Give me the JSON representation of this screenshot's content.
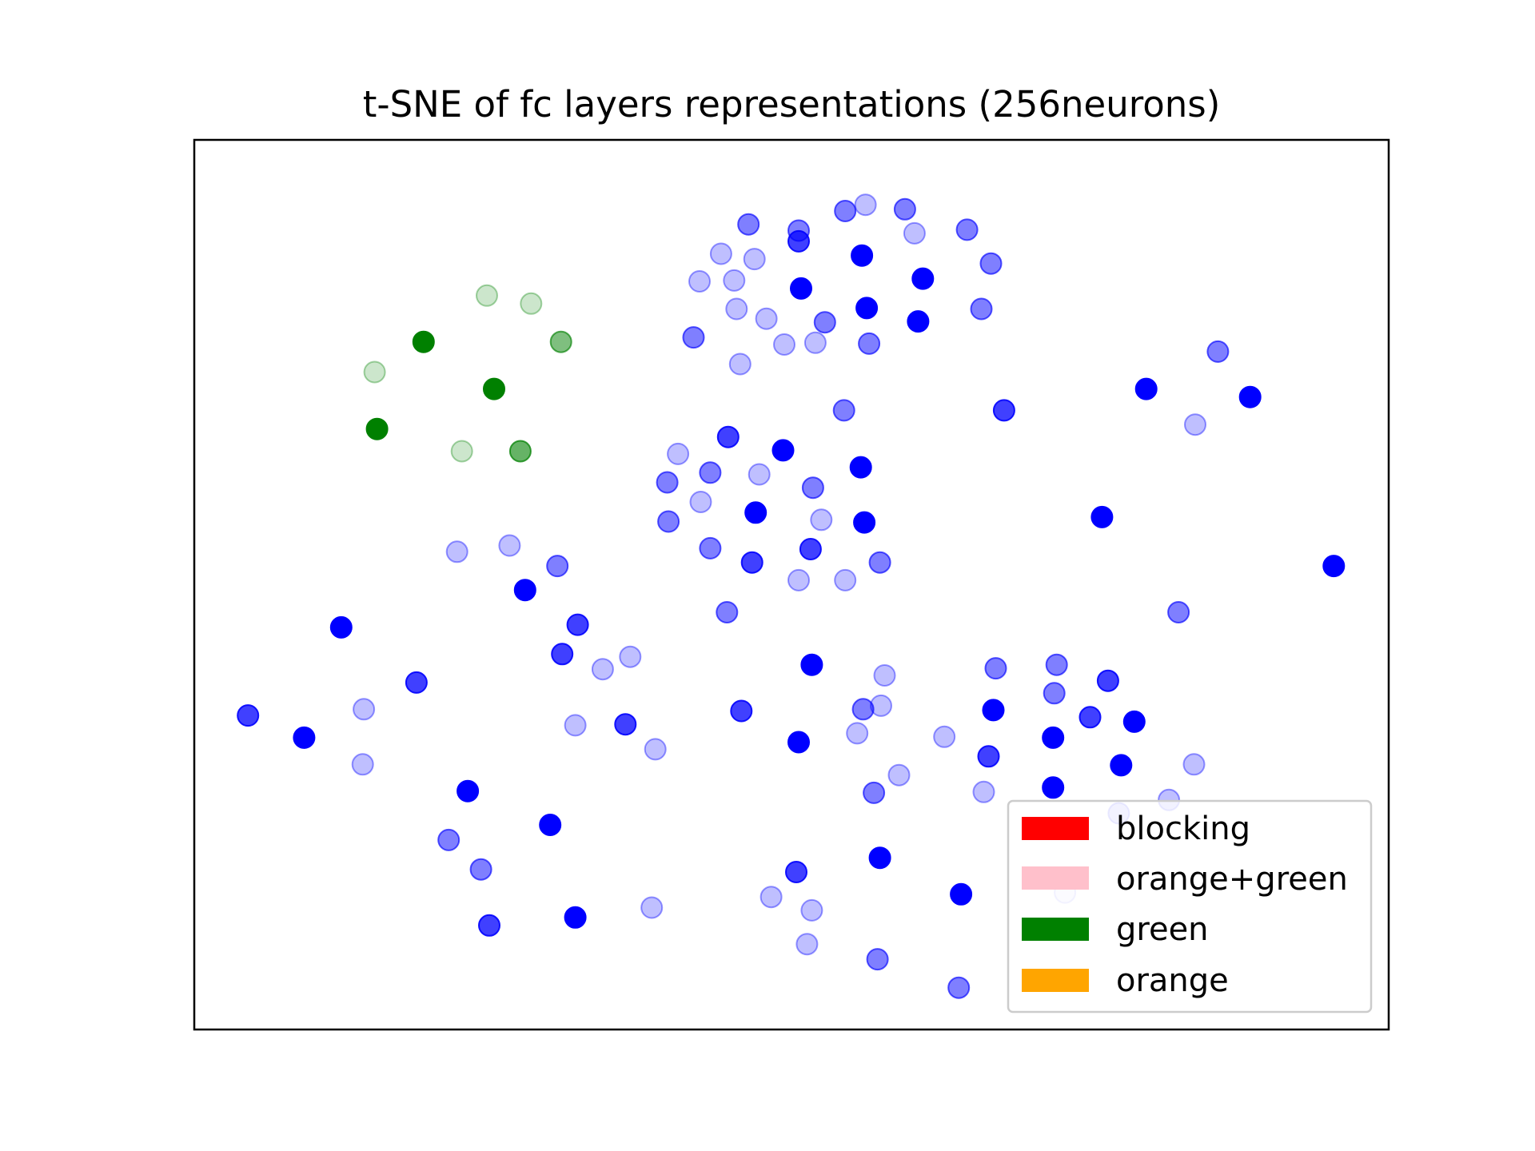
{
  "chart_data": {
    "type": "scatter",
    "title": "t-SNE of fc layers representations (256neurons)",
    "xlabel": "",
    "ylabel": "",
    "xlim": [
      0,
      100
    ],
    "ylim": [
      0,
      100
    ],
    "axes_ticks": false,
    "grid": false,
    "legend_position": "lower-right",
    "legend": [
      {
        "label": "blocking",
        "color": "#ff0000"
      },
      {
        "label": "orange+green",
        "color": "#ffc0cb"
      },
      {
        "label": "green",
        "color": "#008000"
      },
      {
        "label": "orange",
        "color": "#ffa500"
      }
    ],
    "series": [
      {
        "color": "#0000ff",
        "points": [
          {
            "x": 50.6,
            "y": 89.8,
            "a": 0.5
          },
          {
            "x": 56.2,
            "y": 92.7,
            "a": 0.25
          },
          {
            "x": 54.5,
            "y": 92.0,
            "a": 0.5
          },
          {
            "x": 59.5,
            "y": 92.2,
            "a": 0.5
          },
          {
            "x": 46.4,
            "y": 90.5,
            "a": 0.5
          },
          {
            "x": 50.6,
            "y": 88.6,
            "a": 0.75
          },
          {
            "x": 44.1,
            "y": 87.2,
            "a": 0.25
          },
          {
            "x": 46.9,
            "y": 86.6,
            "a": 0.25
          },
          {
            "x": 60.3,
            "y": 89.5,
            "a": 0.25
          },
          {
            "x": 64.7,
            "y": 89.9,
            "a": 0.5
          },
          {
            "x": 55.9,
            "y": 87.0,
            "a": 1.0
          },
          {
            "x": 42.3,
            "y": 84.1,
            "a": 0.25
          },
          {
            "x": 45.2,
            "y": 84.2,
            "a": 0.25
          },
          {
            "x": 50.8,
            "y": 83.3,
            "a": 1.0
          },
          {
            "x": 61.0,
            "y": 84.4,
            "a": 1.0
          },
          {
            "x": 66.7,
            "y": 86.1,
            "a": 0.5
          },
          {
            "x": 45.4,
            "y": 81.0,
            "a": 0.25
          },
          {
            "x": 47.9,
            "y": 79.9,
            "a": 0.25
          },
          {
            "x": 52.8,
            "y": 79.5,
            "a": 0.5
          },
          {
            "x": 56.3,
            "y": 81.1,
            "a": 1.0
          },
          {
            "x": 60.6,
            "y": 79.6,
            "a": 1.0
          },
          {
            "x": 65.9,
            "y": 81.0,
            "a": 0.5
          },
          {
            "x": 41.8,
            "y": 77.8,
            "a": 0.5
          },
          {
            "x": 49.4,
            "y": 77.0,
            "a": 0.25
          },
          {
            "x": 52.0,
            "y": 77.2,
            "a": 0.25
          },
          {
            "x": 56.5,
            "y": 77.1,
            "a": 0.5
          },
          {
            "x": 45.7,
            "y": 74.8,
            "a": 0.25
          },
          {
            "x": 85.7,
            "y": 76.2,
            "a": 0.5
          },
          {
            "x": 79.7,
            "y": 72.0,
            "a": 1.0
          },
          {
            "x": 88.4,
            "y": 71.1,
            "a": 1.0
          },
          {
            "x": 54.4,
            "y": 69.6,
            "a": 0.5
          },
          {
            "x": 67.8,
            "y": 69.6,
            "a": 0.75
          },
          {
            "x": 83.8,
            "y": 68.0,
            "a": 0.25
          },
          {
            "x": 44.7,
            "y": 66.6,
            "a": 0.75
          },
          {
            "x": 49.3,
            "y": 65.1,
            "a": 1.0
          },
          {
            "x": 40.5,
            "y": 64.7,
            "a": 0.25
          },
          {
            "x": 55.8,
            "y": 63.2,
            "a": 1.0
          },
          {
            "x": 43.2,
            "y": 62.6,
            "a": 0.5
          },
          {
            "x": 47.3,
            "y": 62.4,
            "a": 0.25
          },
          {
            "x": 39.6,
            "y": 61.5,
            "a": 0.5
          },
          {
            "x": 51.8,
            "y": 60.9,
            "a": 0.5
          },
          {
            "x": 42.4,
            "y": 59.3,
            "a": 0.25
          },
          {
            "x": 47.0,
            "y": 58.1,
            "a": 1.0
          },
          {
            "x": 52.5,
            "y": 57.3,
            "a": 0.25
          },
          {
            "x": 39.7,
            "y": 57.1,
            "a": 0.5
          },
          {
            "x": 56.1,
            "y": 57.0,
            "a": 1.0
          },
          {
            "x": 76.0,
            "y": 57.6,
            "a": 1.0
          },
          {
            "x": 43.2,
            "y": 54.1,
            "a": 0.5
          },
          {
            "x": 51.6,
            "y": 54.0,
            "a": 0.75
          },
          {
            "x": 22.0,
            "y": 53.7,
            "a": 0.25
          },
          {
            "x": 26.4,
            "y": 54.4,
            "a": 0.25
          },
          {
            "x": 46.7,
            "y": 52.5,
            "a": 0.75
          },
          {
            "x": 57.4,
            "y": 52.5,
            "a": 0.5
          },
          {
            "x": 30.4,
            "y": 52.1,
            "a": 0.5
          },
          {
            "x": 95.4,
            "y": 52.1,
            "a": 1.0
          },
          {
            "x": 50.6,
            "y": 50.5,
            "a": 0.25
          },
          {
            "x": 54.5,
            "y": 50.5,
            "a": 0.25
          },
          {
            "x": 27.7,
            "y": 49.4,
            "a": 1.0
          },
          {
            "x": 12.3,
            "y": 45.2,
            "a": 1.0
          },
          {
            "x": 32.1,
            "y": 45.5,
            "a": 0.75
          },
          {
            "x": 44.6,
            "y": 46.9,
            "a": 0.5
          },
          {
            "x": 82.4,
            "y": 46.9,
            "a": 0.5
          },
          {
            "x": 30.8,
            "y": 42.2,
            "a": 0.75
          },
          {
            "x": 36.5,
            "y": 41.9,
            "a": 0.25
          },
          {
            "x": 51.7,
            "y": 41.0,
            "a": 1.0
          },
          {
            "x": 67.1,
            "y": 40.6,
            "a": 0.5
          },
          {
            "x": 72.2,
            "y": 41.0,
            "a": 0.5
          },
          {
            "x": 34.2,
            "y": 40.5,
            "a": 0.25
          },
          {
            "x": 57.8,
            "y": 39.8,
            "a": 0.25
          },
          {
            "x": 18.6,
            "y": 39.0,
            "a": 0.75
          },
          {
            "x": 76.5,
            "y": 39.2,
            "a": 0.75
          },
          {
            "x": 72.0,
            "y": 37.8,
            "a": 0.5
          },
          {
            "x": 56.0,
            "y": 36.0,
            "a": 0.5
          },
          {
            "x": 57.5,
            "y": 36.4,
            "a": 0.25
          },
          {
            "x": 14.2,
            "y": 36.0,
            "a": 0.25
          },
          {
            "x": 45.8,
            "y": 35.8,
            "a": 0.75
          },
          {
            "x": 66.9,
            "y": 35.9,
            "a": 1.0
          },
          {
            "x": 75.0,
            "y": 35.1,
            "a": 0.75
          },
          {
            "x": 4.5,
            "y": 35.3,
            "a": 0.75
          },
          {
            "x": 31.9,
            "y": 34.2,
            "a": 0.25
          },
          {
            "x": 36.1,
            "y": 34.3,
            "a": 0.75
          },
          {
            "x": 55.5,
            "y": 33.3,
            "a": 0.25
          },
          {
            "x": 78.7,
            "y": 34.6,
            "a": 1.0
          },
          {
            "x": 9.2,
            "y": 32.8,
            "a": 1.0
          },
          {
            "x": 50.6,
            "y": 32.3,
            "a": 1.0
          },
          {
            "x": 62.8,
            "y": 32.9,
            "a": 0.25
          },
          {
            "x": 38.6,
            "y": 31.5,
            "a": 0.25
          },
          {
            "x": 71.9,
            "y": 32.8,
            "a": 1.0
          },
          {
            "x": 66.5,
            "y": 30.7,
            "a": 0.75
          },
          {
            "x": 77.6,
            "y": 29.7,
            "a": 1.0
          },
          {
            "x": 14.1,
            "y": 29.8,
            "a": 0.25
          },
          {
            "x": 59.0,
            "y": 28.6,
            "a": 0.25
          },
          {
            "x": 83.7,
            "y": 29.8,
            "a": 0.25
          },
          {
            "x": 22.9,
            "y": 26.8,
            "a": 1.0
          },
          {
            "x": 56.9,
            "y": 26.6,
            "a": 0.5
          },
          {
            "x": 66.1,
            "y": 26.7,
            "a": 0.25
          },
          {
            "x": 71.9,
            "y": 27.2,
            "a": 1.0
          },
          {
            "x": 81.6,
            "y": 25.8,
            "a": 0.25
          },
          {
            "x": 77.4,
            "y": 24.3,
            "a": 0.25
          },
          {
            "x": 29.8,
            "y": 23.0,
            "a": 1.0
          },
          {
            "x": 21.3,
            "y": 21.3,
            "a": 0.5
          },
          {
            "x": 57.4,
            "y": 19.3,
            "a": 1.0
          },
          {
            "x": 24.0,
            "y": 18.0,
            "a": 0.5
          },
          {
            "x": 50.4,
            "y": 17.7,
            "a": 0.75
          },
          {
            "x": 64.2,
            "y": 15.2,
            "a": 1.0
          },
          {
            "x": 72.9,
            "y": 15.4,
            "a": 0.08
          },
          {
            "x": 48.3,
            "y": 14.9,
            "a": 0.25
          },
          {
            "x": 38.3,
            "y": 13.7,
            "a": 0.25
          },
          {
            "x": 51.7,
            "y": 13.4,
            "a": 0.25
          },
          {
            "x": 24.7,
            "y": 11.7,
            "a": 0.75
          },
          {
            "x": 31.9,
            "y": 12.6,
            "a": 1.0
          },
          {
            "x": 51.3,
            "y": 9.6,
            "a": 0.25
          },
          {
            "x": 57.2,
            "y": 7.9,
            "a": 0.5
          },
          {
            "x": 64.0,
            "y": 4.7,
            "a": 0.5
          }
        ]
      },
      {
        "color": "#008000",
        "points": [
          {
            "x": 24.5,
            "y": 82.5,
            "a": 0.2
          },
          {
            "x": 28.2,
            "y": 81.6,
            "a": 0.2
          },
          {
            "x": 19.2,
            "y": 77.3,
            "a": 1.0
          },
          {
            "x": 30.7,
            "y": 77.3,
            "a": 0.5
          },
          {
            "x": 15.1,
            "y": 73.9,
            "a": 0.2
          },
          {
            "x": 25.1,
            "y": 72.0,
            "a": 1.0
          },
          {
            "x": 15.3,
            "y": 67.5,
            "a": 1.0
          },
          {
            "x": 22.4,
            "y": 65.0,
            "a": 0.2
          },
          {
            "x": 27.3,
            "y": 65.0,
            "a": 0.6
          }
        ]
      }
    ]
  }
}
